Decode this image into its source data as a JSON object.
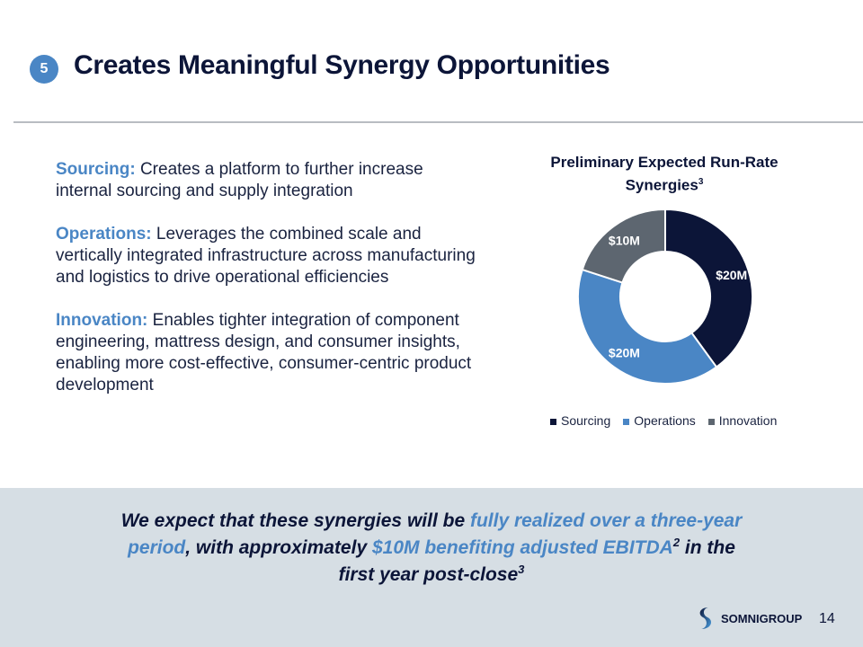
{
  "header": {
    "badge": "5",
    "title": "Creates Meaningful Synergy Opportunities"
  },
  "bullets": [
    {
      "lead": "Sourcing:",
      "text": " Creates a platform to further increase internal sourcing and supply integration"
    },
    {
      "lead": "Operations:",
      "text": " Leverages the combined scale and vertically integrated infrastructure across manufacturing and logistics to drive operational efficiencies"
    },
    {
      "lead": "Innovation:",
      "text": " Enables tighter integration of component engineering, mattress design, and consumer insights, enabling more cost-effective, consumer-centric product development"
    }
  ],
  "chart_data": {
    "type": "pie",
    "title": "Preliminary Expected Run-Rate Synergies",
    "title_sup": "3",
    "categories": [
      "Sourcing",
      "Operations",
      "Innovation"
    ],
    "values": [
      20,
      20,
      10
    ],
    "labels": [
      "$20M",
      "$20M",
      "$10M"
    ],
    "colors": [
      "#0c1538",
      "#4a86c5",
      "#5d6670"
    ],
    "legend": "bottom"
  },
  "callout": {
    "p1": "We expect that these synergies will be ",
    "h1": "fully realized over a three-year period",
    "p2": ", with approximately ",
    "h2": "$10M benefiting adjusted EBITDA",
    "sup1": "2",
    "p3": " in the first year post-close",
    "sup2": "3"
  },
  "footer": {
    "logo": "SOMNIGROUP",
    "page": "14"
  }
}
